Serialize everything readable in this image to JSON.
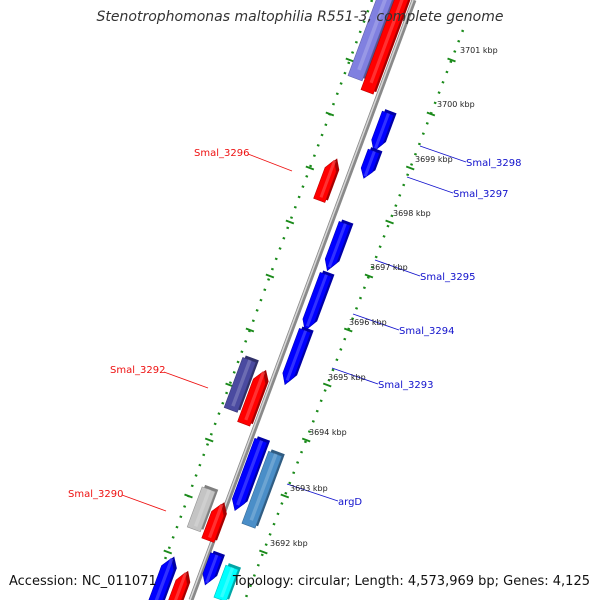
{
  "title": "Stenotrophomonas maltophilia R551-3, complete genome",
  "footer": {
    "accession": "Accession: NC_011071",
    "topology": "Topology: circular; Length: 4,573,969 bp; Genes: 4,125"
  },
  "colors": {
    "backbone": "#8a8a8a",
    "tick": "#1a8a1a",
    "left_label": "#ee1111",
    "right_label": "#1111cc",
    "red": "#ff0000",
    "blue": "#0000ff",
    "slate": "#4a4aa0",
    "steel": "#4a8ec8",
    "gray": "#c4c4c4",
    "cyan": "#00ffff",
    "lavender": "#8080e0"
  },
  "kbp_labels": [
    "3701 kbp",
    "3700 kbp",
    "3699 kbp",
    "3698 kbp",
    "3697 kbp",
    "3696 kbp",
    "3695 kbp",
    "3694 kbp",
    "3693 kbp",
    "3692 kbp"
  ],
  "gene_labels": {
    "left": [
      "Smal_3296",
      "Smal_3292",
      "Smal_3290"
    ],
    "right": [
      "Smal_3298",
      "Smal_3297",
      "Smal_3295",
      "Smal_3294",
      "Smal_3293",
      "argD"
    ]
  }
}
